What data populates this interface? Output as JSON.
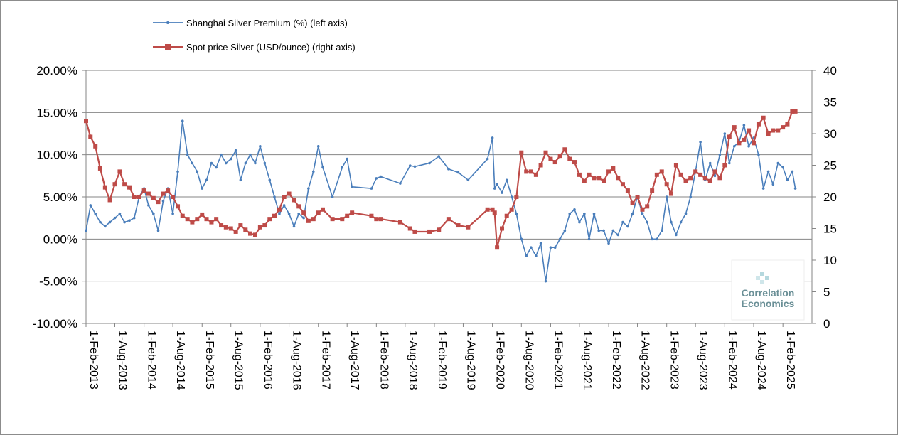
{
  "chart_data": {
    "type": "line",
    "title": "",
    "y_left": {
      "ylim": [
        -0.1,
        0.2
      ],
      "ticks": [
        "-10.00%",
        "-5.00%",
        "0.00%",
        "5.00%",
        "10.00%",
        "15.00%",
        "20.00%"
      ]
    },
    "y_right": {
      "ylim": [
        0,
        40
      ],
      "ticks": [
        "0",
        "5",
        "10",
        "15",
        "20",
        "25",
        "30",
        "35",
        "40"
      ]
    },
    "x_ticks": [
      "1-Feb-2013",
      "1-Aug-2013",
      "1-Feb-2014",
      "1-Aug-2014",
      "1-Feb-2015",
      "1-Aug-2015",
      "1-Feb-2016",
      "1-Aug-2016",
      "1-Feb-2017",
      "1-Aug-2017",
      "1-Feb-2018",
      "1-Aug-2018",
      "1-Feb-2019",
      "1-Aug-2019",
      "1-Feb-2020",
      "1-Aug-2020",
      "1-Feb-2021",
      "1-Aug-2021",
      "1-Feb-2022",
      "1-Aug-2022",
      "1-Feb-2023",
      "1-Aug-2023",
      "1-Feb-2024",
      "1-Aug-2024",
      "1-Feb-2025"
    ],
    "grid": "horizontal",
    "legend_position": "top-left",
    "series": [
      {
        "name": "Shanghai Silver Premium (%) (left axis)",
        "axis": "left",
        "color": "#4a7ebb",
        "x": [
          "2013-02-01",
          "2013-03-01",
          "2013-04-01",
          "2013-05-01",
          "2013-06-01",
          "2013-07-01",
          "2013-08-01",
          "2013-09-01",
          "2013-10-01",
          "2013-11-01",
          "2013-12-01",
          "2014-01-01",
          "2014-02-01",
          "2014-03-01",
          "2014-04-01",
          "2014-05-01",
          "2014-06-01",
          "2014-07-01",
          "2014-08-01",
          "2014-09-01",
          "2014-10-01",
          "2014-11-01",
          "2014-12-01",
          "2015-01-01",
          "2015-02-01",
          "2015-03-01",
          "2015-04-01",
          "2015-05-01",
          "2015-06-01",
          "2015-07-01",
          "2015-08-01",
          "2015-09-01",
          "2015-10-01",
          "2015-11-01",
          "2015-12-01",
          "2016-01-01",
          "2016-02-01",
          "2016-03-01",
          "2016-04-01",
          "2016-05-01",
          "2016-06-01",
          "2016-07-01",
          "2016-08-01",
          "2016-09-01",
          "2016-10-01",
          "2016-11-01",
          "2016-12-01",
          "2017-01-01",
          "2017-02-01",
          "2017-03-01",
          "2017-05-01",
          "2017-07-01",
          "2017-08-01",
          "2017-09-01",
          "2018-01-01",
          "2018-02-01",
          "2018-03-01",
          "2018-07-01",
          "2018-09-01",
          "2018-10-01",
          "2019-01-01",
          "2019-03-01",
          "2019-05-01",
          "2019-07-01",
          "2019-09-01",
          "2020-01-01",
          "2020-02-01",
          "2020-02-15",
          "2020-03-01",
          "2020-04-01",
          "2020-05-01",
          "2020-06-01",
          "2020-07-01",
          "2020-08-01",
          "2020-09-01",
          "2020-10-01",
          "2020-11-01",
          "2020-12-01",
          "2021-01-01",
          "2021-02-01",
          "2021-03-01",
          "2021-04-01",
          "2021-05-01",
          "2021-06-01",
          "2021-07-01",
          "2021-08-01",
          "2021-09-01",
          "2021-10-01",
          "2021-11-01",
          "2021-12-01",
          "2022-01-01",
          "2022-02-01",
          "2022-03-01",
          "2022-04-01",
          "2022-05-01",
          "2022-06-01",
          "2022-07-01",
          "2022-08-01",
          "2022-09-01",
          "2022-10-01",
          "2022-11-01",
          "2022-12-01",
          "2023-01-01",
          "2023-02-01",
          "2023-03-01",
          "2023-04-01",
          "2023-05-01",
          "2023-06-01",
          "2023-07-01",
          "2023-08-01",
          "2023-09-01",
          "2023-10-01",
          "2023-11-01",
          "2023-12-01",
          "2024-01-01",
          "2024-02-01",
          "2024-03-01",
          "2024-04-01",
          "2024-05-01",
          "2024-06-01",
          "2024-07-01",
          "2024-08-01",
          "2024-09-01",
          "2024-10-01",
          "2024-11-01",
          "2024-12-01",
          "2025-01-01",
          "2025-02-01",
          "2025-03-01",
          "2025-04-01"
        ],
        "values": [
          0.01,
          0.04,
          0.03,
          0.02,
          0.015,
          0.02,
          0.025,
          0.03,
          0.02,
          0.022,
          0.025,
          0.05,
          0.06,
          0.04,
          0.03,
          0.01,
          0.045,
          0.06,
          0.03,
          0.08,
          0.14,
          0.1,
          0.09,
          0.08,
          0.06,
          0.07,
          0.09,
          0.085,
          0.1,
          0.09,
          0.095,
          0.105,
          0.07,
          0.09,
          0.1,
          0.09,
          0.11,
          0.09,
          0.07,
          0.05,
          0.03,
          0.04,
          0.03,
          0.015,
          0.03,
          0.025,
          0.06,
          0.08,
          0.11,
          0.085,
          0.05,
          0.085,
          0.095,
          0.062,
          0.06,
          0.072,
          0.074,
          0.066,
          0.087,
          0.086,
          0.09,
          0.098,
          0.083,
          0.079,
          0.07,
          0.095,
          0.12,
          0.06,
          0.065,
          0.055,
          0.07,
          0.05,
          0.03,
          0.0,
          -0.02,
          -0.01,
          -0.02,
          -0.005,
          -0.05,
          -0.01,
          -0.01,
          0.0,
          0.01,
          0.03,
          0.035,
          0.02,
          0.03,
          0.0,
          0.03,
          0.01,
          0.01,
          -0.005,
          0.01,
          0.005,
          0.02,
          0.015,
          0.03,
          0.05,
          0.03,
          0.02,
          0.0,
          0.0,
          0.01,
          0.05,
          0.02,
          0.005,
          0.02,
          0.03,
          0.05,
          0.08,
          0.115,
          0.07,
          0.09,
          0.075,
          0.1,
          0.125,
          0.09,
          0.11,
          0.115,
          0.135,
          0.11,
          0.12,
          0.1,
          0.06,
          0.08,
          0.065,
          0.09,
          0.085,
          0.07,
          0.08
        ],
        "extra_last": 0.06
      },
      {
        "name": "Spot price Silver (USD/ounce) (right axis)",
        "axis": "right",
        "color": "#be4b48",
        "x": [
          "2013-02-01",
          "2013-03-01",
          "2013-04-01",
          "2013-05-01",
          "2013-06-01",
          "2013-07-01",
          "2013-08-01",
          "2013-09-01",
          "2013-10-01",
          "2013-11-01",
          "2013-12-01",
          "2014-01-01",
          "2014-02-01",
          "2014-03-01",
          "2014-04-01",
          "2014-05-01",
          "2014-06-01",
          "2014-07-01",
          "2014-08-01",
          "2014-09-01",
          "2014-10-01",
          "2014-11-01",
          "2014-12-01",
          "2015-01-01",
          "2015-02-01",
          "2015-03-01",
          "2015-04-01",
          "2015-05-01",
          "2015-06-01",
          "2015-07-01",
          "2015-08-01",
          "2015-09-01",
          "2015-10-01",
          "2015-11-01",
          "2015-12-01",
          "2016-01-01",
          "2016-02-01",
          "2016-03-01",
          "2016-04-01",
          "2016-05-01",
          "2016-06-01",
          "2016-07-01",
          "2016-08-01",
          "2016-09-01",
          "2016-10-01",
          "2016-11-01",
          "2016-12-01",
          "2017-01-01",
          "2017-02-01",
          "2017-03-01",
          "2017-05-01",
          "2017-07-01",
          "2017-08-01",
          "2017-09-01",
          "2018-01-01",
          "2018-02-01",
          "2018-03-01",
          "2018-07-01",
          "2018-09-01",
          "2018-10-01",
          "2019-01-01",
          "2019-03-01",
          "2019-05-01",
          "2019-07-01",
          "2019-09-01",
          "2020-01-01",
          "2020-02-01",
          "2020-02-15",
          "2020-03-01",
          "2020-04-01",
          "2020-05-01",
          "2020-06-01",
          "2020-07-01",
          "2020-08-01",
          "2020-09-01",
          "2020-10-01",
          "2020-11-01",
          "2020-12-01",
          "2021-01-01",
          "2021-02-01",
          "2021-03-01",
          "2021-04-01",
          "2021-05-01",
          "2021-06-01",
          "2021-07-01",
          "2021-08-01",
          "2021-09-01",
          "2021-10-01",
          "2021-11-01",
          "2021-12-01",
          "2022-01-01",
          "2022-02-01",
          "2022-03-01",
          "2022-04-01",
          "2022-05-01",
          "2022-06-01",
          "2022-07-01",
          "2022-08-01",
          "2022-09-01",
          "2022-10-01",
          "2022-11-01",
          "2022-12-01",
          "2023-01-01",
          "2023-02-01",
          "2023-03-01",
          "2023-04-01",
          "2023-05-01",
          "2023-06-01",
          "2023-07-01",
          "2023-08-01",
          "2023-09-01",
          "2023-10-01",
          "2023-11-01",
          "2023-12-01",
          "2024-01-01",
          "2024-02-01",
          "2024-03-01",
          "2024-04-01",
          "2024-05-01",
          "2024-06-01",
          "2024-07-01",
          "2024-08-01",
          "2024-09-01",
          "2024-10-01",
          "2024-11-01",
          "2024-12-01",
          "2025-01-01",
          "2025-02-01",
          "2025-03-01",
          "2025-04-01"
        ],
        "values": [
          32.0,
          29.5,
          28.0,
          24.5,
          21.5,
          19.5,
          22.0,
          24.0,
          22.0,
          21.5,
          20.0,
          20.0,
          21.0,
          20.5,
          19.8,
          19.2,
          20.5,
          21.0,
          20.0,
          18.5,
          17.0,
          16.5,
          16.0,
          16.5,
          17.2,
          16.5,
          16.0,
          16.5,
          15.5,
          15.2,
          15.0,
          14.5,
          15.5,
          14.8,
          14.2,
          14.0,
          15.2,
          15.5,
          16.5,
          17.0,
          18.0,
          20.0,
          20.5,
          19.5,
          18.5,
          17.5,
          16.2,
          16.5,
          17.5,
          18.0,
          16.5,
          16.5,
          17.0,
          17.5,
          17.0,
          16.5,
          16.5,
          16.0,
          15.0,
          14.5,
          14.5,
          14.8,
          16.5,
          15.5,
          15.2,
          18.0,
          18.0,
          17.5,
          12.0,
          15.0,
          17.0,
          18.0,
          20.0,
          27.0,
          24.0,
          24.0,
          23.5,
          25.0,
          27.0,
          26.0,
          25.5,
          26.5,
          27.5,
          26.0,
          25.5,
          23.5,
          22.5,
          23.5,
          23.0,
          23.0,
          22.5,
          24.0,
          24.5,
          23.0,
          22.0,
          21.0,
          19.0,
          20.0,
          18.0,
          18.5,
          21.0,
          23.5,
          24.0,
          22.0,
          20.5,
          25.0,
          23.5,
          22.5,
          23.0,
          24.0,
          23.5,
          23.0,
          22.5,
          24.0,
          23.0,
          25.0,
          29.5,
          31.0,
          28.5,
          29.0,
          30.5,
          28.5,
          31.5,
          32.5,
          30.0,
          30.5,
          30.5,
          31.0,
          31.5,
          33.5
        ],
        "extra_last": 33.5
      }
    ]
  },
  "legend": {
    "premium_label": "Shanghai Silver Premium (%) (left axis)",
    "spot_label": "Spot price Silver (USD/ounce) (right axis)"
  },
  "watermark": {
    "line1": "Correlation",
    "line2": "Economics"
  }
}
